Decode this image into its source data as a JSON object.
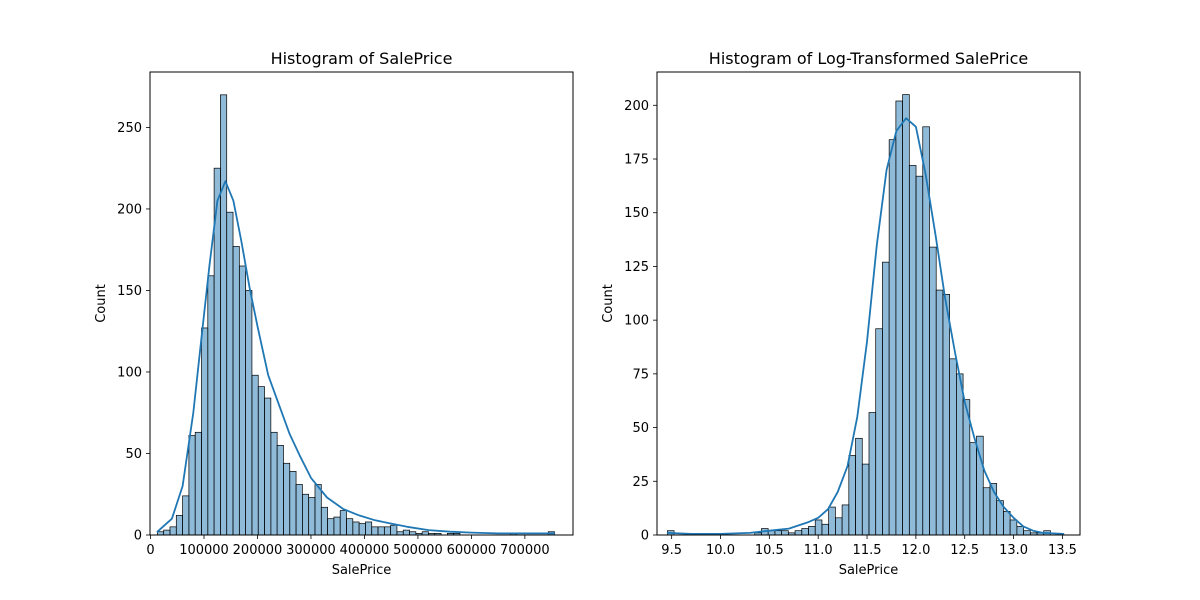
{
  "colors": {
    "bar_fill": "#1f77b4",
    "bar_fill_opacity": 0.5,
    "bar_edge": "#000000",
    "kde": "#1f77b4"
  },
  "chart_data": [
    {
      "type": "bar",
      "title": "Histogram of SalePrice",
      "xlabel": "SalePrice",
      "ylabel": "Count",
      "xlim": [
        -1000,
        790000
      ],
      "ylim": [
        0,
        284
      ],
      "xticks": [
        0,
        100000,
        200000,
        300000,
        400000,
        500000,
        600000,
        700000
      ],
      "xtick_labels": [
        "0",
        "100000",
        "200000",
        "300000",
        "400000",
        "500000",
        "600000",
        "700000"
      ],
      "yticks": [
        0,
        50,
        100,
        150,
        200,
        250
      ],
      "ytick_labels": [
        "0",
        "50",
        "100",
        "150",
        "200",
        "250"
      ],
      "bins": {
        "start": 12789,
        "width": 11789
      },
      "counts": [
        2,
        3,
        5,
        12,
        24,
        61,
        63,
        127,
        159,
        225,
        270,
        198,
        177,
        165,
        150,
        98,
        91,
        84,
        63,
        55,
        44,
        39,
        31,
        25,
        23,
        31,
        17,
        10,
        11,
        15,
        10,
        8,
        7,
        8,
        5,
        5,
        5,
        6,
        2,
        3,
        2,
        1,
        2,
        1,
        1,
        0,
        1,
        1,
        0,
        0,
        0,
        0,
        0,
        0,
        0,
        0,
        1,
        0,
        0,
        0,
        0,
        0,
        2
      ],
      "kde": {
        "x": [
          12789,
          40000,
          60000,
          80000,
          95000,
          110000,
          125000,
          140000,
          155000,
          170000,
          185000,
          200000,
          220000,
          240000,
          260000,
          280000,
          300000,
          330000,
          360000,
          390000,
          420000,
          450000,
          480000,
          520000,
          560000,
          600000,
          650000,
          700000,
          755000
        ],
        "y": [
          2,
          10,
          30,
          75,
          120,
          165,
          205,
          217,
          205,
          180,
          152,
          128,
          98,
          80,
          62,
          48,
          35,
          23,
          16,
          12,
          9,
          7,
          5,
          3,
          2,
          1.5,
          1,
          1,
          1
        ]
      }
    },
    {
      "type": "bar",
      "title": "Histogram of Log-Transformed SalePrice",
      "xlabel": "SalePrice",
      "ylabel": "Count",
      "xlim": [
        9.35,
        13.68
      ],
      "ylim": [
        0,
        215.5
      ],
      "xticks": [
        9.5,
        10.0,
        10.5,
        11.0,
        11.5,
        12.0,
        12.5,
        13.0,
        13.5
      ],
      "xtick_labels": [
        "9.5",
        "10.0",
        "10.5",
        "11.0",
        "11.5",
        "12.0",
        "12.5",
        "13.0",
        "13.5"
      ],
      "yticks": [
        0,
        25,
        50,
        75,
        100,
        125,
        150,
        175,
        200
      ],
      "ytick_labels": [
        "0",
        "25",
        "50",
        "75",
        "100",
        "125",
        "150",
        "175",
        "200"
      ],
      "bins": {
        "start": 9.456,
        "width": 0.0688
      },
      "counts": [
        2,
        0,
        0,
        0,
        0,
        0,
        0,
        0,
        0,
        0,
        0,
        0,
        0,
        1,
        3,
        2,
        2,
        2,
        1,
        2,
        3,
        4,
        7,
        5,
        13,
        8,
        14,
        37,
        45,
        33,
        57,
        96,
        127,
        184,
        202,
        205,
        172,
        167,
        190,
        134,
        114,
        112,
        82,
        75,
        63,
        43,
        46,
        22,
        24,
        16,
        11,
        7,
        4,
        2,
        1,
        1,
        2
      ],
      "kde": {
        "x": [
          9.46,
          9.7,
          10.0,
          10.3,
          10.5,
          10.7,
          10.9,
          11.0,
          11.1,
          11.2,
          11.3,
          11.4,
          11.5,
          11.6,
          11.7,
          11.8,
          11.9,
          12.0,
          12.1,
          12.2,
          12.3,
          12.4,
          12.5,
          12.6,
          12.7,
          12.8,
          12.9,
          13.0,
          13.1,
          13.2,
          13.3,
          13.51
        ],
        "y": [
          1,
          0.5,
          0.5,
          1,
          2,
          3,
          6,
          8,
          12,
          20,
          32,
          55,
          90,
          135,
          170,
          188,
          194,
          190,
          168,
          140,
          110,
          85,
          62,
          45,
          30,
          20,
          13,
          8,
          4,
          2,
          1,
          0.5
        ]
      }
    }
  ]
}
